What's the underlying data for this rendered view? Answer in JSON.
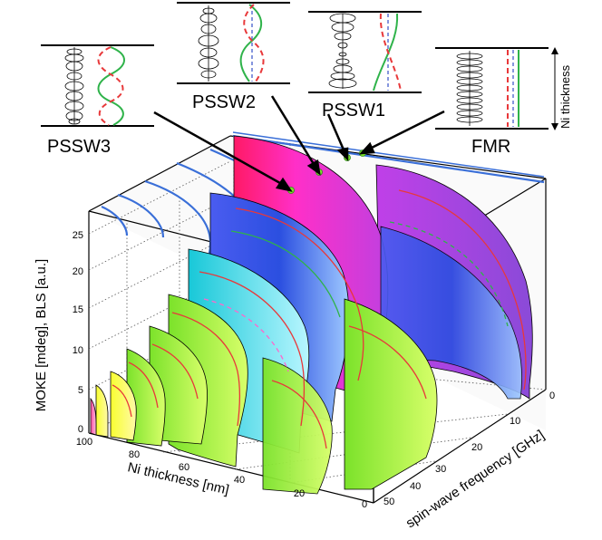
{
  "chart_data": {
    "type": "3d-surface",
    "axes": {
      "x": {
        "label": "Ni thickness [nm]",
        "ticks": [
          100,
          80,
          60,
          40,
          20,
          0
        ],
        "range": [
          0,
          100
        ]
      },
      "y": {
        "label": "spin-wave frequency [GHz]",
        "ticks": [
          0,
          10,
          20,
          30,
          40,
          50
        ],
        "range": [
          0,
          50
        ]
      },
      "z": {
        "label": "MOKE [mdeg], BLS [a.u.]",
        "ticks": [
          0,
          5,
          10,
          15,
          20,
          25
        ],
        "range": [
          0,
          27
        ]
      }
    },
    "side_label": "Ni thickness",
    "mode_profiles": [
      {
        "name": "PSSW3"
      },
      {
        "name": "PSSW2"
      },
      {
        "name": "PSSW1"
      },
      {
        "name": "FMR"
      }
    ],
    "slice_thicknesses": [
      95,
      90,
      85,
      80,
      72,
      63,
      54,
      45,
      36,
      27,
      18,
      9
    ],
    "dispersion_branches": [
      {
        "name": "FMR",
        "color": "#3a6fd8"
      },
      {
        "name": "PSSW1",
        "color": "#3a6fd8"
      },
      {
        "name": "PSSW2",
        "color": "#3a6fd8"
      },
      {
        "name": "PSSW3",
        "color": "#3a6fd8"
      }
    ],
    "colors": {
      "branch": "#3a6fd8",
      "accent_green": "#2fb34a",
      "accent_red": "#e8383a",
      "dash_blue": "#3550c8"
    }
  }
}
